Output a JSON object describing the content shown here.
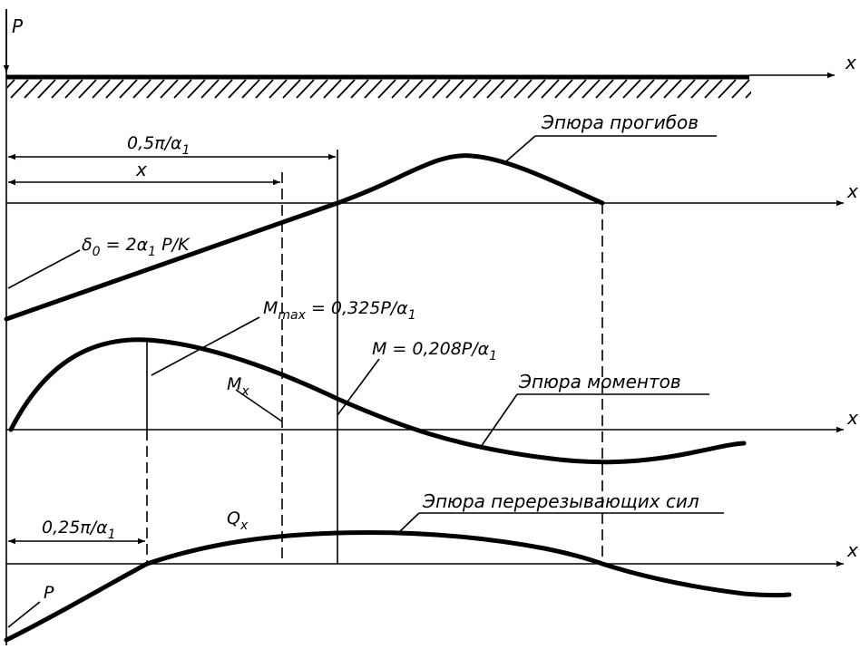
{
  "diagram": {
    "load_label": "P",
    "axis_label": "x",
    "curve_titles": {
      "deflection": "Эпюра прогибов",
      "moment": "Эпюра моментов",
      "shear": "Эпюра перерезывающих сил"
    },
    "dimensions": {
      "half_pi_over_alpha": {
        "pre": "0,5π/α",
        "sub": "1"
      },
      "distance_x": "x",
      "quarter_pi_over_alpha": {
        "pre": "0,25π/α",
        "sub": "1"
      }
    },
    "annotations": {
      "delta0": {
        "pre": "δ",
        "sub1": "0",
        "mid": " = 2α",
        "sub2": "1",
        "post": " P/K"
      },
      "m_max": {
        "pre": "M",
        "sub1": "max",
        "mid": " = 0,325P/α",
        "sub2": "1"
      },
      "m_at_half": {
        "pre": "M = 0,208P/α",
        "sub": "1"
      },
      "m_x": {
        "pre": "M",
        "sub": "x"
      },
      "q_x": {
        "pre": "Q",
        "sub": "x"
      },
      "shear_p": "P"
    }
  }
}
